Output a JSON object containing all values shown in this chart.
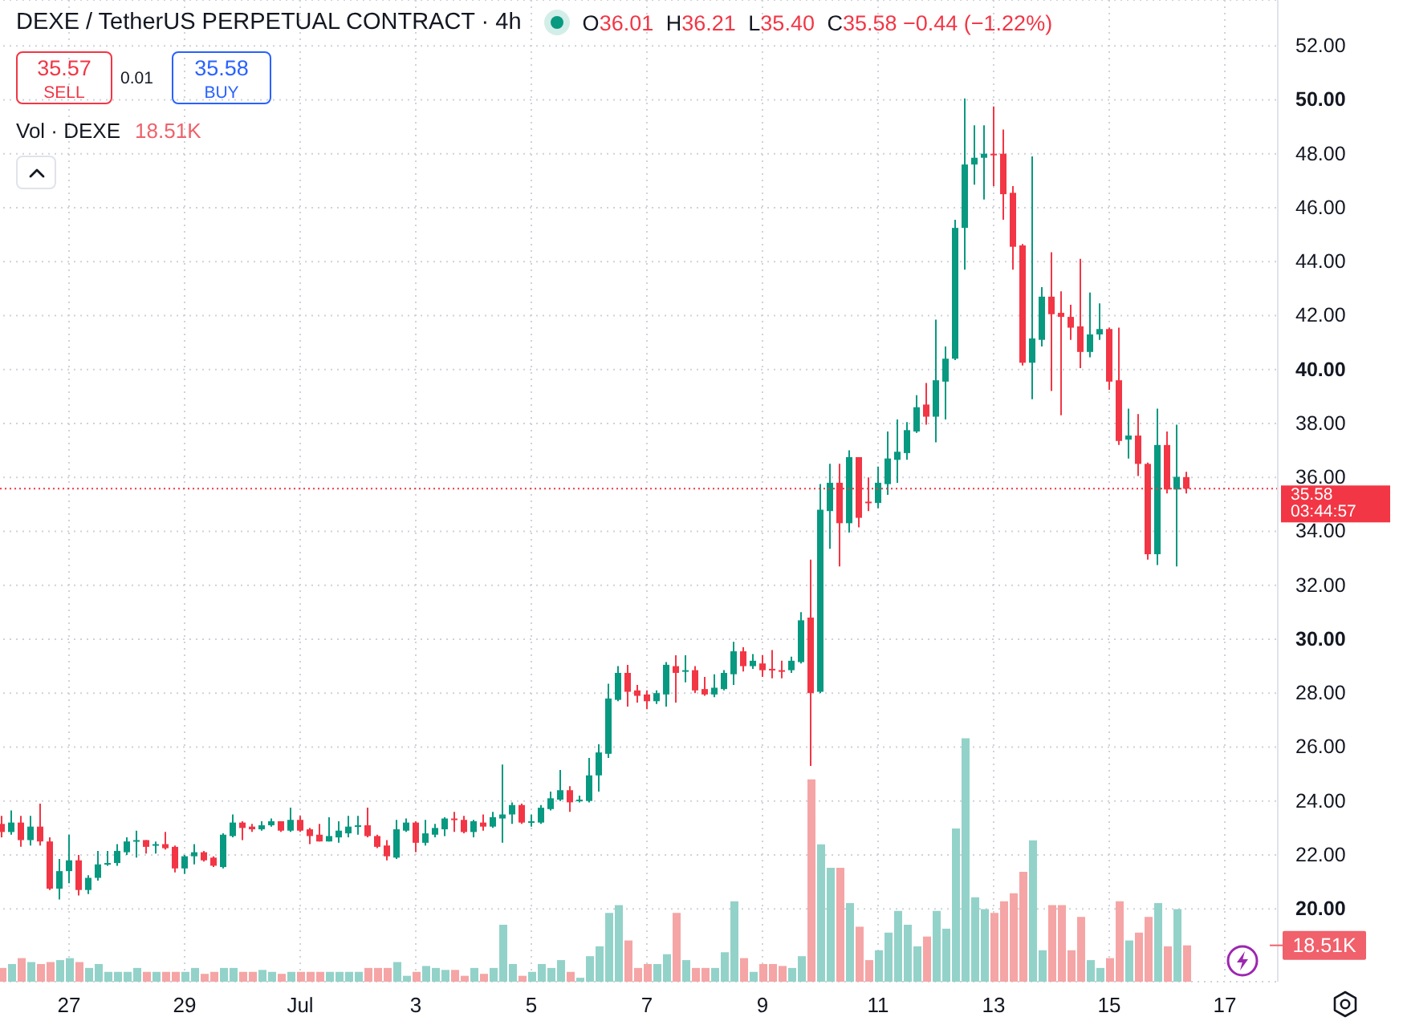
{
  "chart_data": {
    "type": "candlestick",
    "title": "DEXE / TetherUS PERPETUAL CONTRACT · 4h",
    "categories": [
      null,
      null,
      null,
      null,
      null,
      null,
      null,
      "27",
      null,
      null,
      null,
      null,
      null,
      null,
      null,
      null,
      null,
      null,
      null,
      "29",
      null,
      null,
      null,
      null,
      null,
      null,
      null,
      null,
      null,
      null,
      null,
      "Jul",
      null,
      null,
      null,
      null,
      null,
      null,
      null,
      null,
      null,
      null,
      null,
      "3",
      null,
      null,
      null,
      null,
      null,
      null,
      null,
      null,
      null,
      null,
      null,
      "5",
      null,
      null,
      null,
      null,
      null,
      null,
      null,
      null,
      null,
      null,
      null,
      "7",
      null,
      null,
      null,
      null,
      null,
      null,
      null,
      null,
      null,
      null,
      null,
      "9",
      null,
      null,
      null,
      null,
      null,
      null,
      null,
      null,
      null,
      null,
      null,
      "11",
      null,
      null,
      null,
      null,
      null,
      null,
      null,
      null,
      null,
      null,
      null,
      "13",
      null,
      null,
      null,
      null,
      null,
      null,
      null,
      null,
      null,
      null,
      null,
      "15",
      null,
      null,
      null,
      null,
      null,
      null,
      null,
      null,
      null,
      null,
      null,
      "17",
      null,
      null,
      null,
      null,
      null
    ],
    "series": [
      {
        "ohlc": [
          [
            23.15,
            23.45,
            22.65,
            22.85
          ],
          [
            22.85,
            23.65,
            22.75,
            23.2
          ],
          [
            23.2,
            23.45,
            22.3,
            22.55
          ],
          [
            22.55,
            23.45,
            22.35,
            23.05
          ],
          [
            23.05,
            23.9,
            22.35,
            22.5
          ],
          [
            22.5,
            22.65,
            20.7,
            20.75
          ],
          [
            20.75,
            21.85,
            20.35,
            21.4
          ],
          [
            21.4,
            22.75,
            20.95,
            21.8
          ],
          [
            21.8,
            22.0,
            20.5,
            20.7
          ],
          [
            20.7,
            21.25,
            20.55,
            21.15
          ],
          [
            21.15,
            22.15,
            21.05,
            21.65
          ],
          [
            21.65,
            22.15,
            21.6,
            21.7
          ],
          [
            21.7,
            22.4,
            21.6,
            22.15
          ],
          [
            22.1,
            22.65,
            22.0,
            22.5
          ],
          [
            22.5,
            22.9,
            21.9,
            22.55
          ],
          [
            22.55,
            22.55,
            22.05,
            22.3
          ],
          [
            22.35,
            22.5,
            22.05,
            22.4
          ],
          [
            22.4,
            22.85,
            22.2,
            22.25
          ],
          [
            22.3,
            22.35,
            21.35,
            21.5
          ],
          [
            21.5,
            22.0,
            21.3,
            21.95
          ],
          [
            21.95,
            22.4,
            21.65,
            22.1
          ],
          [
            22.1,
            22.15,
            21.75,
            21.8
          ],
          [
            21.9,
            21.95,
            21.55,
            21.6
          ],
          [
            21.55,
            22.8,
            21.5,
            22.75
          ],
          [
            22.7,
            23.5,
            22.65,
            23.2
          ],
          [
            23.2,
            23.25,
            22.55,
            23.0
          ],
          [
            23.05,
            23.15,
            22.85,
            22.95
          ],
          [
            22.95,
            23.25,
            22.9,
            23.1
          ],
          [
            23.1,
            23.35,
            23.05,
            23.25
          ],
          [
            23.25,
            23.25,
            22.85,
            22.9
          ],
          [
            22.9,
            23.75,
            22.85,
            23.3
          ],
          [
            23.3,
            23.45,
            22.85,
            22.9
          ],
          [
            22.95,
            23.0,
            22.4,
            22.7
          ],
          [
            22.75,
            23.15,
            22.5,
            22.5
          ],
          [
            22.5,
            23.4,
            22.5,
            22.7
          ],
          [
            22.65,
            23.25,
            22.45,
            22.9
          ],
          [
            22.8,
            23.45,
            22.65,
            23.05
          ],
          [
            23.05,
            23.45,
            22.75,
            23.1
          ],
          [
            23.1,
            23.75,
            22.65,
            22.7
          ],
          [
            22.7,
            22.75,
            22.25,
            22.3
          ],
          [
            22.35,
            22.55,
            21.8,
            21.95
          ],
          [
            21.9,
            23.3,
            21.85,
            22.95
          ],
          [
            22.9,
            23.35,
            22.85,
            23.2
          ],
          [
            23.2,
            23.25,
            22.1,
            22.45
          ],
          [
            22.45,
            23.3,
            22.35,
            22.8
          ],
          [
            22.75,
            23.15,
            22.65,
            23.0
          ],
          [
            22.95,
            23.4,
            22.7,
            23.35
          ],
          [
            23.35,
            23.6,
            22.85,
            23.3
          ],
          [
            23.3,
            23.45,
            22.8,
            22.85
          ],
          [
            22.85,
            23.3,
            22.65,
            23.25
          ],
          [
            23.2,
            23.5,
            22.9,
            23.05
          ],
          [
            23.05,
            23.6,
            23.0,
            23.4
          ],
          [
            23.35,
            25.35,
            22.45,
            23.5
          ],
          [
            23.5,
            23.95,
            23.15,
            23.85
          ],
          [
            23.85,
            23.9,
            23.15,
            23.2
          ],
          [
            23.2,
            23.5,
            23.05,
            23.25
          ],
          [
            23.2,
            23.85,
            23.15,
            23.75
          ],
          [
            23.7,
            24.35,
            23.65,
            24.1
          ],
          [
            24.05,
            25.15,
            24.0,
            24.4
          ],
          [
            24.4,
            24.55,
            23.6,
            23.95
          ],
          [
            24.0,
            24.2,
            23.95,
            24.05
          ],
          [
            24.0,
            25.6,
            23.95,
            24.95
          ],
          [
            24.95,
            26.1,
            24.35,
            25.8
          ],
          [
            25.75,
            28.35,
            25.6,
            27.8
          ],
          [
            27.75,
            29.0,
            27.7,
            28.75
          ],
          [
            28.75,
            29.05,
            27.5,
            28.05
          ],
          [
            28.1,
            28.3,
            27.65,
            27.9
          ],
          [
            27.95,
            28.1,
            27.4,
            27.7
          ],
          [
            27.7,
            28.1,
            27.6,
            28.0
          ],
          [
            27.95,
            29.15,
            27.5,
            29.05
          ],
          [
            29.0,
            29.4,
            27.65,
            28.75
          ],
          [
            28.8,
            29.4,
            28.4,
            28.85
          ],
          [
            28.85,
            29.0,
            28.0,
            28.1
          ],
          [
            28.15,
            28.6,
            27.9,
            27.95
          ],
          [
            27.95,
            28.7,
            27.85,
            28.2
          ],
          [
            28.15,
            28.85,
            28.1,
            28.75
          ],
          [
            28.7,
            29.9,
            28.3,
            29.55
          ],
          [
            29.55,
            29.7,
            28.8,
            29.0
          ],
          [
            29.0,
            29.45,
            28.9,
            29.2
          ],
          [
            29.1,
            29.4,
            28.6,
            28.85
          ],
          [
            28.9,
            29.6,
            28.55,
            28.85
          ],
          [
            28.85,
            29.2,
            28.55,
            28.8
          ],
          [
            28.85,
            29.35,
            28.75,
            29.2
          ],
          [
            29.15,
            31.0,
            29.1,
            30.7
          ],
          [
            30.8,
            32.95,
            25.3,
            28.0
          ],
          [
            28.05,
            35.75,
            28.0,
            34.8
          ],
          [
            34.75,
            36.5,
            33.35,
            35.8
          ],
          [
            35.8,
            36.5,
            32.7,
            34.3
          ],
          [
            34.3,
            37.0,
            33.95,
            36.75
          ],
          [
            36.75,
            36.75,
            34.15,
            34.5
          ],
          [
            35.1,
            36.0,
            34.75,
            35.05
          ],
          [
            35.05,
            36.4,
            34.85,
            35.8
          ],
          [
            35.75,
            37.7,
            35.35,
            36.7
          ],
          [
            36.65,
            38.15,
            35.8,
            36.95
          ],
          [
            36.9,
            38.05,
            36.65,
            37.75
          ],
          [
            37.7,
            39.05,
            37.65,
            38.6
          ],
          [
            38.7,
            39.5,
            37.95,
            38.25
          ],
          [
            38.25,
            41.85,
            37.3,
            39.6
          ],
          [
            39.55,
            40.85,
            38.15,
            40.4
          ],
          [
            40.4,
            45.55,
            40.35,
            45.25
          ],
          [
            45.25,
            50.05,
            43.7,
            47.6
          ],
          [
            47.6,
            49.05,
            46.85,
            47.85
          ],
          [
            47.85,
            49.05,
            46.3,
            48.0
          ],
          [
            48.0,
            49.75,
            46.8,
            47.95
          ],
          [
            48.0,
            48.9,
            45.55,
            46.5
          ],
          [
            46.55,
            46.8,
            43.7,
            44.55
          ],
          [
            44.6,
            44.65,
            40.15,
            40.25
          ],
          [
            40.25,
            47.9,
            38.9,
            41.15
          ],
          [
            41.1,
            43.05,
            40.85,
            42.7
          ],
          [
            42.7,
            44.35,
            39.2,
            42.05
          ],
          [
            42.1,
            42.9,
            38.3,
            41.95
          ],
          [
            41.95,
            42.4,
            41.1,
            41.55
          ],
          [
            41.6,
            44.1,
            40.05,
            40.65
          ],
          [
            40.65,
            42.85,
            40.45,
            41.3
          ],
          [
            41.3,
            42.45,
            41.1,
            41.5
          ],
          [
            41.5,
            41.55,
            39.25,
            39.55
          ],
          [
            39.6,
            41.55,
            37.2,
            37.35
          ],
          [
            37.4,
            38.55,
            36.7,
            37.55
          ],
          [
            37.55,
            38.35,
            36.05,
            36.5
          ],
          [
            36.5,
            36.55,
            32.95,
            33.15
          ],
          [
            33.15,
            38.55,
            32.75,
            37.2
          ],
          [
            37.2,
            37.7,
            35.4,
            35.55
          ],
          [
            35.55,
            37.95,
            32.7,
            36.02
          ],
          [
            36.01,
            36.21,
            35.4,
            35.58
          ],
          null,
          null,
          null,
          null,
          null,
          null,
          null,
          null,
          null
        ],
        "colors": [
          "#f23645",
          "#089981",
          "#f23645",
          "#089981",
          "#f23645",
          "#f23645",
          "#089981",
          "#089981",
          "#f23645",
          "#089981",
          "#089981",
          "#089981",
          "#089981",
          "#089981",
          "#089981",
          "#f23645",
          "#089981",
          "#f23645",
          "#f23645",
          "#089981",
          "#089981",
          "#f23645",
          "#f23645",
          "#089981",
          "#089981",
          "#f23645",
          "#f23645",
          "#089981",
          "#089981",
          "#f23645",
          "#089981",
          "#f23645",
          "#f23645",
          "#f23645",
          "#089981",
          "#089981",
          "#089981",
          "#089981",
          "#f23645",
          "#f23645",
          "#f23645",
          "#089981",
          "#089981",
          "#f23645",
          "#089981",
          "#089981",
          "#089981",
          "#f23645",
          "#f23645",
          "#089981",
          "#f23645",
          "#089981",
          "#089981",
          "#089981",
          "#f23645",
          "#089981",
          "#089981",
          "#089981",
          "#089981",
          "#f23645",
          "#089981",
          "#089981",
          "#089981",
          "#089981",
          "#089981",
          "#f23645",
          "#f23645",
          "#f23645",
          "#089981",
          "#089981",
          "#f23645",
          "#089981",
          "#f23645",
          "#f23645",
          "#089981",
          "#089981",
          "#089981",
          "#f23645",
          "#089981",
          "#f23645",
          "#f23645",
          "#f23645",
          "#089981",
          "#089981",
          "#f23645",
          "#089981",
          "#089981",
          "#f23645",
          "#089981",
          "#f23645",
          "#f23645",
          "#089981",
          "#089981",
          "#089981",
          "#089981",
          "#089981",
          "#f23645",
          "#089981",
          "#089981",
          "#089981",
          "#089981",
          "#089981",
          "#089981",
          "#f23645",
          "#f23645",
          "#f23645",
          "#f23645",
          "#089981",
          "#089981",
          "#f23645",
          "#f23645",
          "#f23645",
          "#f23645",
          "#089981",
          "#089981",
          "#f23645",
          "#f23645",
          "#089981",
          "#f23645",
          "#f23645",
          "#089981",
          "#f23645",
          "#089981",
          "#f23645",
          null,
          null,
          null,
          null,
          null,
          null,
          null,
          null,
          null
        ]
      },
      {
        "type": "bar",
        "axis": "y2",
        "values": [
          7000,
          9000,
          12000,
          10000,
          9000,
          10000,
          11000,
          12000,
          10000,
          7000,
          9000,
          5000,
          5000,
          5000,
          7000,
          5000,
          5000,
          5000,
          5000,
          5000,
          7000,
          4000,
          5000,
          7000,
          7000,
          5000,
          5000,
          6000,
          5000,
          4000,
          5000,
          5000,
          5000,
          5000,
          5000,
          5000,
          5000,
          5000,
          7000,
          7000,
          7000,
          10000,
          3000,
          5000,
          8000,
          7000,
          6000,
          6000,
          3000,
          7000,
          4000,
          7000,
          29000,
          9000,
          3000,
          5000,
          9000,
          7000,
          11000,
          5000,
          2000,
          13000,
          18000,
          35000,
          39000,
          21000,
          7000,
          9000,
          9000,
          14000,
          35000,
          11000,
          7000,
          7000,
          7000,
          15000,
          41000,
          12000,
          5000,
          9000,
          9000,
          8000,
          7000,
          13000,
          103000,
          70000,
          58000,
          58000,
          40000,
          28000,
          11000,
          16000,
          25000,
          36000,
          29000,
          18000,
          23000,
          36000,
          27000,
          78000,
          124000,
          43000,
          37000,
          35000,
          41000,
          45000,
          56000,
          72000,
          16000,
          39000,
          39000,
          16000,
          33000,
          11000,
          7000,
          12000,
          41000,
          21000,
          25000,
          33000,
          40000,
          18000,
          37000,
          18510,
          null,
          null,
          null,
          null,
          null,
          null,
          null,
          null,
          null
        ],
        "colors": [
          "#f5a5a5",
          "#93d2c9",
          "#f5a5a5",
          "#93d2c9",
          "#f5a5a5",
          "#f5a5a5",
          "#93d2c9",
          "#93d2c9",
          "#f5a5a5",
          "#93d2c9",
          "#93d2c9",
          "#93d2c9",
          "#93d2c9",
          "#93d2c9",
          "#93d2c9",
          "#f5a5a5",
          "#93d2c9",
          "#f5a5a5",
          "#f5a5a5",
          "#93d2c9",
          "#93d2c9",
          "#f5a5a5",
          "#f5a5a5",
          "#93d2c9",
          "#93d2c9",
          "#f5a5a5",
          "#f5a5a5",
          "#93d2c9",
          "#93d2c9",
          "#f5a5a5",
          "#93d2c9",
          "#f5a5a5",
          "#f5a5a5",
          "#f5a5a5",
          "#93d2c9",
          "#93d2c9",
          "#93d2c9",
          "#93d2c9",
          "#f5a5a5",
          "#f5a5a5",
          "#f5a5a5",
          "#93d2c9",
          "#93d2c9",
          "#f5a5a5",
          "#93d2c9",
          "#93d2c9",
          "#93d2c9",
          "#f5a5a5",
          "#f5a5a5",
          "#93d2c9",
          "#f5a5a5",
          "#93d2c9",
          "#93d2c9",
          "#93d2c9",
          "#f5a5a5",
          "#93d2c9",
          "#93d2c9",
          "#93d2c9",
          "#93d2c9",
          "#f5a5a5",
          "#93d2c9",
          "#93d2c9",
          "#93d2c9",
          "#93d2c9",
          "#93d2c9",
          "#f5a5a5",
          "#f5a5a5",
          "#f5a5a5",
          "#93d2c9",
          "#93d2c9",
          "#f5a5a5",
          "#93d2c9",
          "#f5a5a5",
          "#f5a5a5",
          "#93d2c9",
          "#93d2c9",
          "#93d2c9",
          "#f5a5a5",
          "#93d2c9",
          "#f5a5a5",
          "#f5a5a5",
          "#f5a5a5",
          "#93d2c9",
          "#93d2c9",
          "#f5a5a5",
          "#93d2c9",
          "#93d2c9",
          "#f5a5a5",
          "#93d2c9",
          "#f5a5a5",
          "#f5a5a5",
          "#93d2c9",
          "#93d2c9",
          "#93d2c9",
          "#93d2c9",
          "#93d2c9",
          "#f5a5a5",
          "#93d2c9",
          "#93d2c9",
          "#93d2c9",
          "#93d2c9",
          "#93d2c9",
          "#93d2c9",
          "#f5a5a5",
          "#f5a5a5",
          "#f5a5a5",
          "#f5a5a5",
          "#93d2c9",
          "#93d2c9",
          "#f5a5a5",
          "#f5a5a5",
          "#f5a5a5",
          "#f5a5a5",
          "#93d2c9",
          "#93d2c9",
          "#f5a5a5",
          "#f5a5a5",
          "#93d2c9",
          "#f5a5a5",
          "#f5a5a5",
          "#93d2c9",
          "#f5a5a5",
          "#93d2c9",
          "#f5a5a5",
          null,
          null,
          null,
          null,
          null,
          null,
          null,
          null,
          null
        ]
      }
    ],
    "ylim": [
      17.3,
      53.7
    ],
    "yticks": [
      {
        "value": 20,
        "label": "20.00"
      },
      {
        "value": 22,
        "label": "22.00"
      },
      {
        "value": 24,
        "label": "24.00"
      },
      {
        "value": 26,
        "label": "26.00"
      },
      {
        "value": 28,
        "label": "28.00"
      },
      {
        "value": 30,
        "label": "30.00"
      },
      {
        "value": 32,
        "label": "32.00"
      },
      {
        "value": 34,
        "label": "34.00"
      },
      {
        "value": 36,
        "label": "36.00"
      },
      {
        "value": 38,
        "label": "38.00"
      },
      {
        "value": 40,
        "label": "40.00"
      },
      {
        "value": 42,
        "label": "42.00"
      },
      {
        "value": 44,
        "label": "44.00"
      },
      {
        "value": 46,
        "label": "46.00"
      },
      {
        "value": 48,
        "label": "48.00"
      },
      {
        "value": 50,
        "label": "50.00"
      },
      {
        "value": 52,
        "label": "52.00"
      }
    ],
    "y2lim": [
      0,
      500000
    ],
    "y2ticks": [
      {
        "value": 18510,
        "label": "18.51K"
      }
    ],
    "ref_lines": [
      {
        "axis": "y",
        "value": 35.58,
        "label": "35.58\n03:44:57",
        "color": "#f23645",
        "line_style": "dotted"
      }
    ],
    "annotations": [
      "O36.01 H36.21 L35.40 C35.58 −0.44 (−1.22%)",
      "35.57",
      "SELL",
      "0.01",
      "35.58",
      "BUY",
      "Vol · DEXE",
      "18.51K"
    ],
    "grid": true
  }
}
